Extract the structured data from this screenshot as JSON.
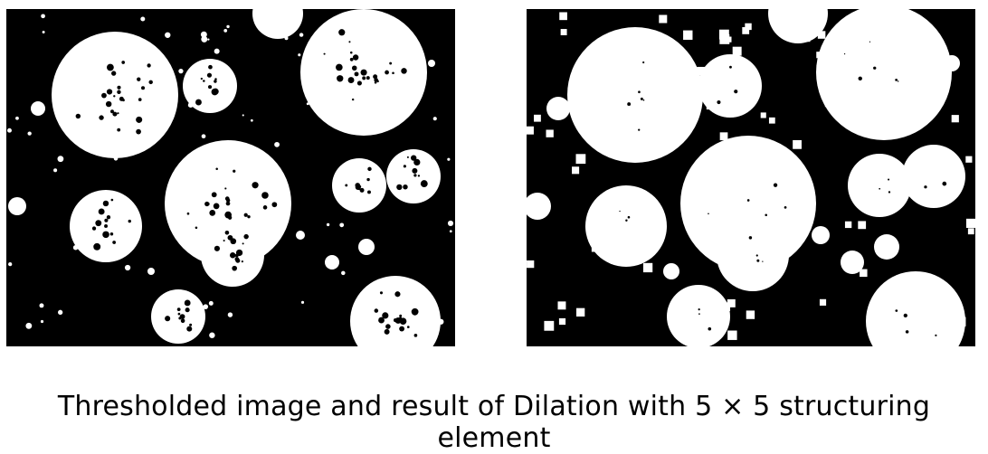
{
  "caption": "Thresholded image and result of Dilation with 5 × 5 structuring element"
}
